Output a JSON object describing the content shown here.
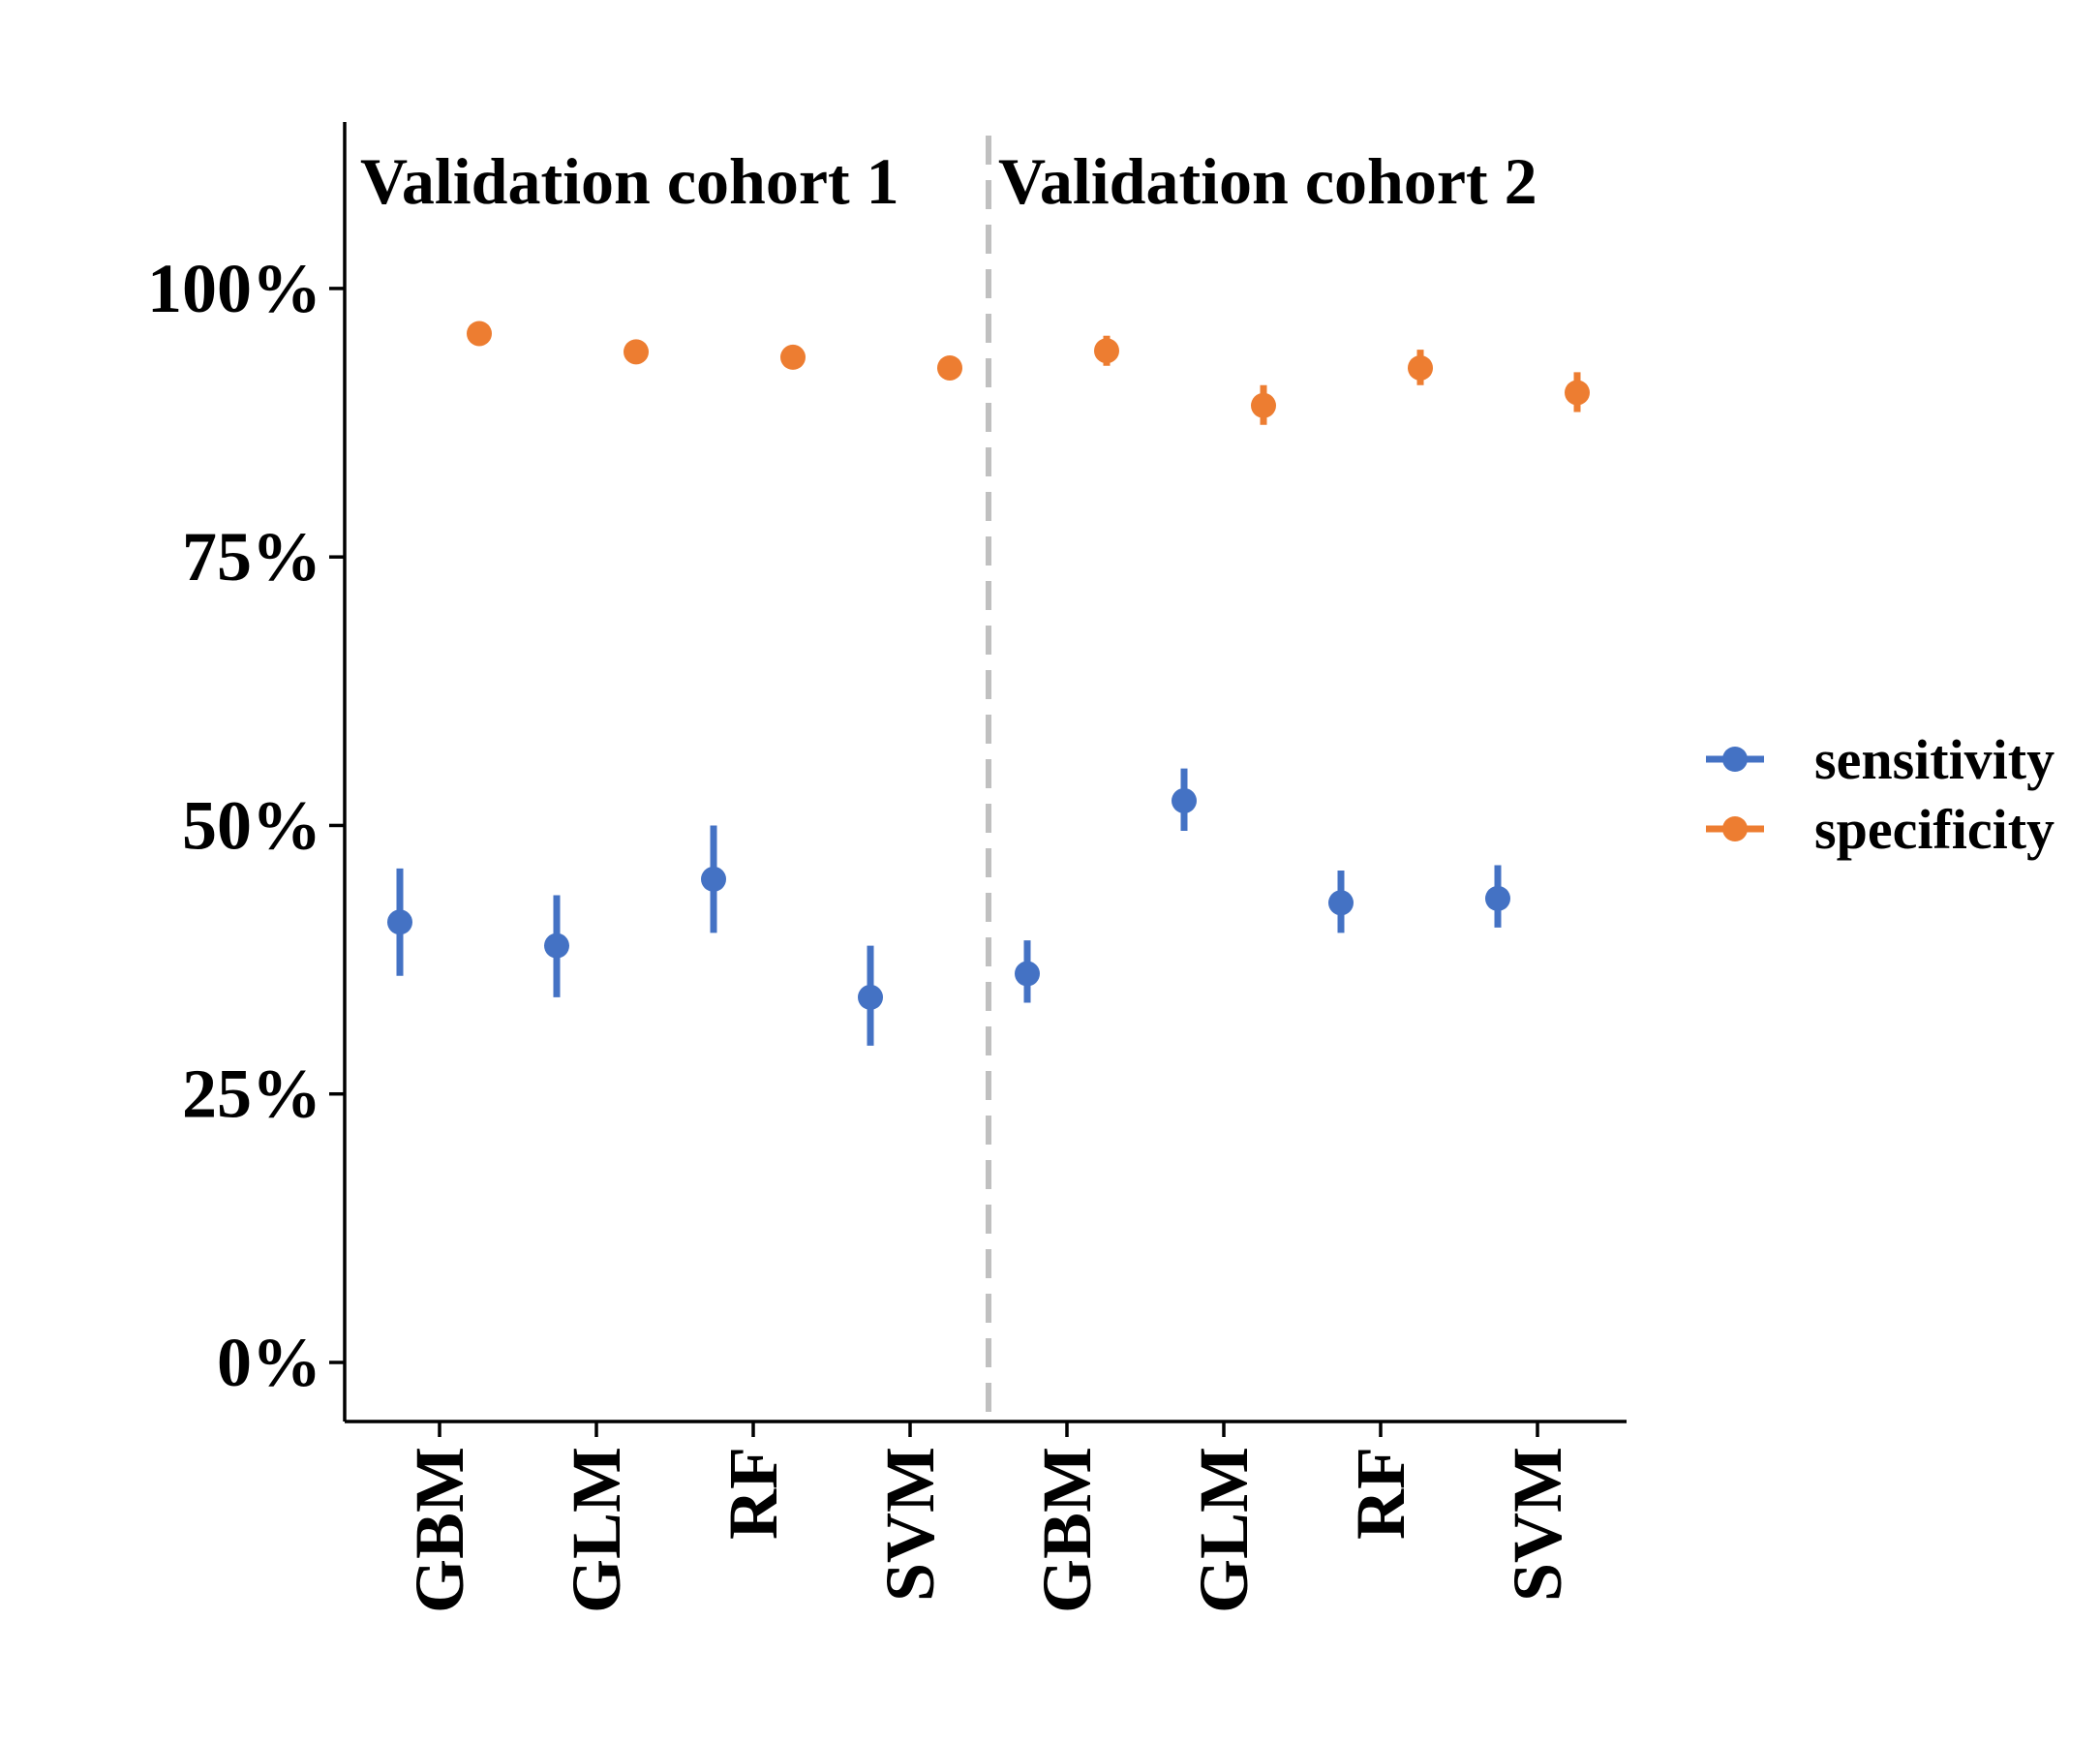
{
  "chart_data": {
    "type": "scatter",
    "title": "",
    "xlabel": "",
    "ylabel": "",
    "categories": [
      "GBM",
      "GLM",
      "RF",
      "SVM",
      "GBM",
      "GLM",
      "RF",
      "SVM"
    ],
    "groups": [
      {
        "label": "Validation cohort 1",
        "categories": [
          "GBM",
          "GLM",
          "RF",
          "SVM"
        ]
      },
      {
        "label": "Validation cohort 2",
        "categories": [
          "GBM",
          "GLM",
          "RF",
          "SVM"
        ]
      }
    ],
    "y_ticks": [
      {
        "value": 0,
        "label": "0%"
      },
      {
        "value": 25,
        "label": "25%"
      },
      {
        "value": 50,
        "label": "50%"
      },
      {
        "value": 75,
        "label": "75%"
      },
      {
        "value": 100,
        "label": "100%"
      }
    ],
    "ylim": [
      -5.5,
      115.5
    ],
    "series": [
      {
        "name": "sensitivity",
        "color": "#4472C4",
        "values": [
          41.0,
          38.8,
          45.0,
          34.0,
          36.2,
          52.3,
          42.8,
          43.2
        ],
        "lower": [
          36.0,
          34.0,
          40.0,
          29.5,
          33.5,
          49.5,
          40.0,
          40.5
        ],
        "upper": [
          46.0,
          43.5,
          50.0,
          38.8,
          39.3,
          55.3,
          45.8,
          46.3
        ]
      },
      {
        "name": "specificity",
        "color": "#ED7D31",
        "values": [
          95.8,
          94.1,
          93.6,
          92.6,
          94.2,
          89.1,
          92.6,
          90.3
        ],
        "lower": [
          95.6,
          93.9,
          93.4,
          92.4,
          92.8,
          87.3,
          91.0,
          88.5
        ],
        "upper": [
          96.0,
          94.3,
          93.8,
          92.8,
          95.6,
          91.0,
          94.3,
          92.2
        ]
      }
    ],
    "divider": {
      "after_category_index": 3,
      "style": "dashed",
      "color": "#C0C0C0"
    },
    "legend": {
      "position": "right"
    },
    "grid": false
  }
}
